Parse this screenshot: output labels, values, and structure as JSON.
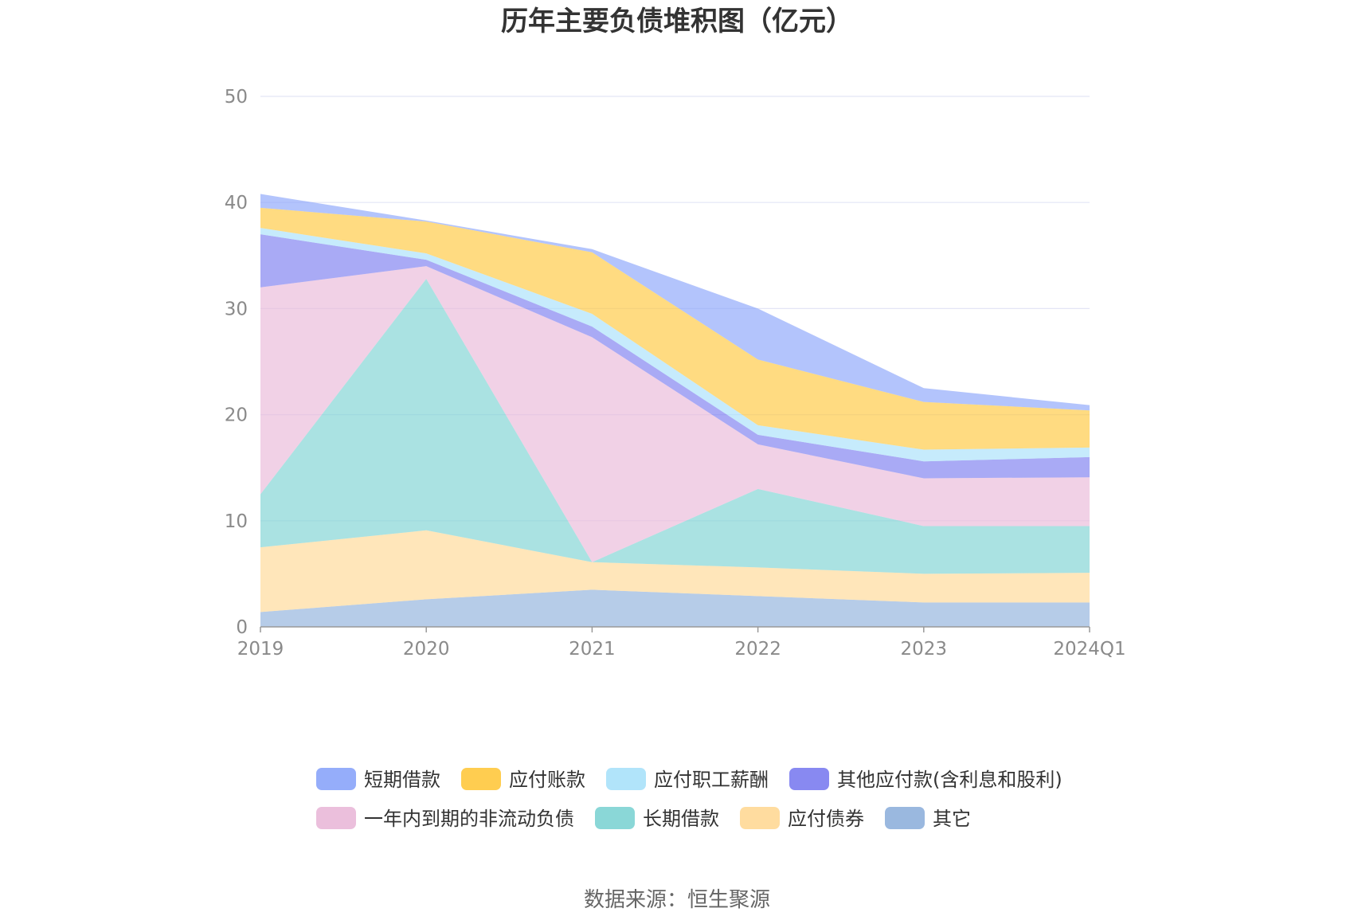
{
  "chart_data": {
    "type": "area",
    "title": "历年主要负债堆积图（亿元）",
    "categories": [
      "2019",
      "2020",
      "2021",
      "2022",
      "2023",
      "2024Q1"
    ],
    "ylim": [
      0,
      50
    ],
    "yticks": [
      0,
      10,
      20,
      30,
      40,
      50
    ],
    "grid": true,
    "legend_position": "bottom",
    "source_text": "数据来源：恒生聚源",
    "series": [
      {
        "name": "其它",
        "color": "#8fb0dc",
        "values": [
          1.4,
          2.6,
          3.5,
          2.9,
          2.3,
          2.3
        ]
      },
      {
        "name": "应付债券",
        "color": "#ffd895",
        "values": [
          6.1,
          6.5,
          2.6,
          2.7,
          2.7,
          2.8
        ]
      },
      {
        "name": "长期借款",
        "color": "#7dd3d3",
        "values": [
          5.0,
          23.7,
          0.0,
          7.4,
          4.5,
          4.4
        ]
      },
      {
        "name": "一年内到期的非流动负债",
        "color": "#e9b8d8",
        "values": [
          19.5,
          1.2,
          21.2,
          4.2,
          4.5,
          4.6
        ]
      },
      {
        "name": "其他应付款(含利息和股利)",
        "color": "#7b7cf0",
        "values": [
          5.0,
          0.6,
          1.0,
          0.9,
          1.6,
          1.9
        ]
      },
      {
        "name": "应付职工薪酬",
        "color": "#a8e1fa",
        "values": [
          0.6,
          0.6,
          1.2,
          0.9,
          1.1,
          0.9
        ]
      },
      {
        "name": "应付账款",
        "color": "#ffc83d",
        "values": [
          1.9,
          3.0,
          5.8,
          6.2,
          4.5,
          3.5
        ]
      },
      {
        "name": "短期借款",
        "color": "#8aa4fa",
        "values": [
          1.3,
          0.1,
          0.3,
          4.8,
          1.3,
          0.5
        ]
      }
    ],
    "legend_order": [
      "短期借款",
      "应付账款",
      "应付职工薪酬",
      "其他应付款(含利息和股利)",
      "一年内到期的非流动负债",
      "长期借款",
      "应付债券",
      "其它"
    ]
  }
}
